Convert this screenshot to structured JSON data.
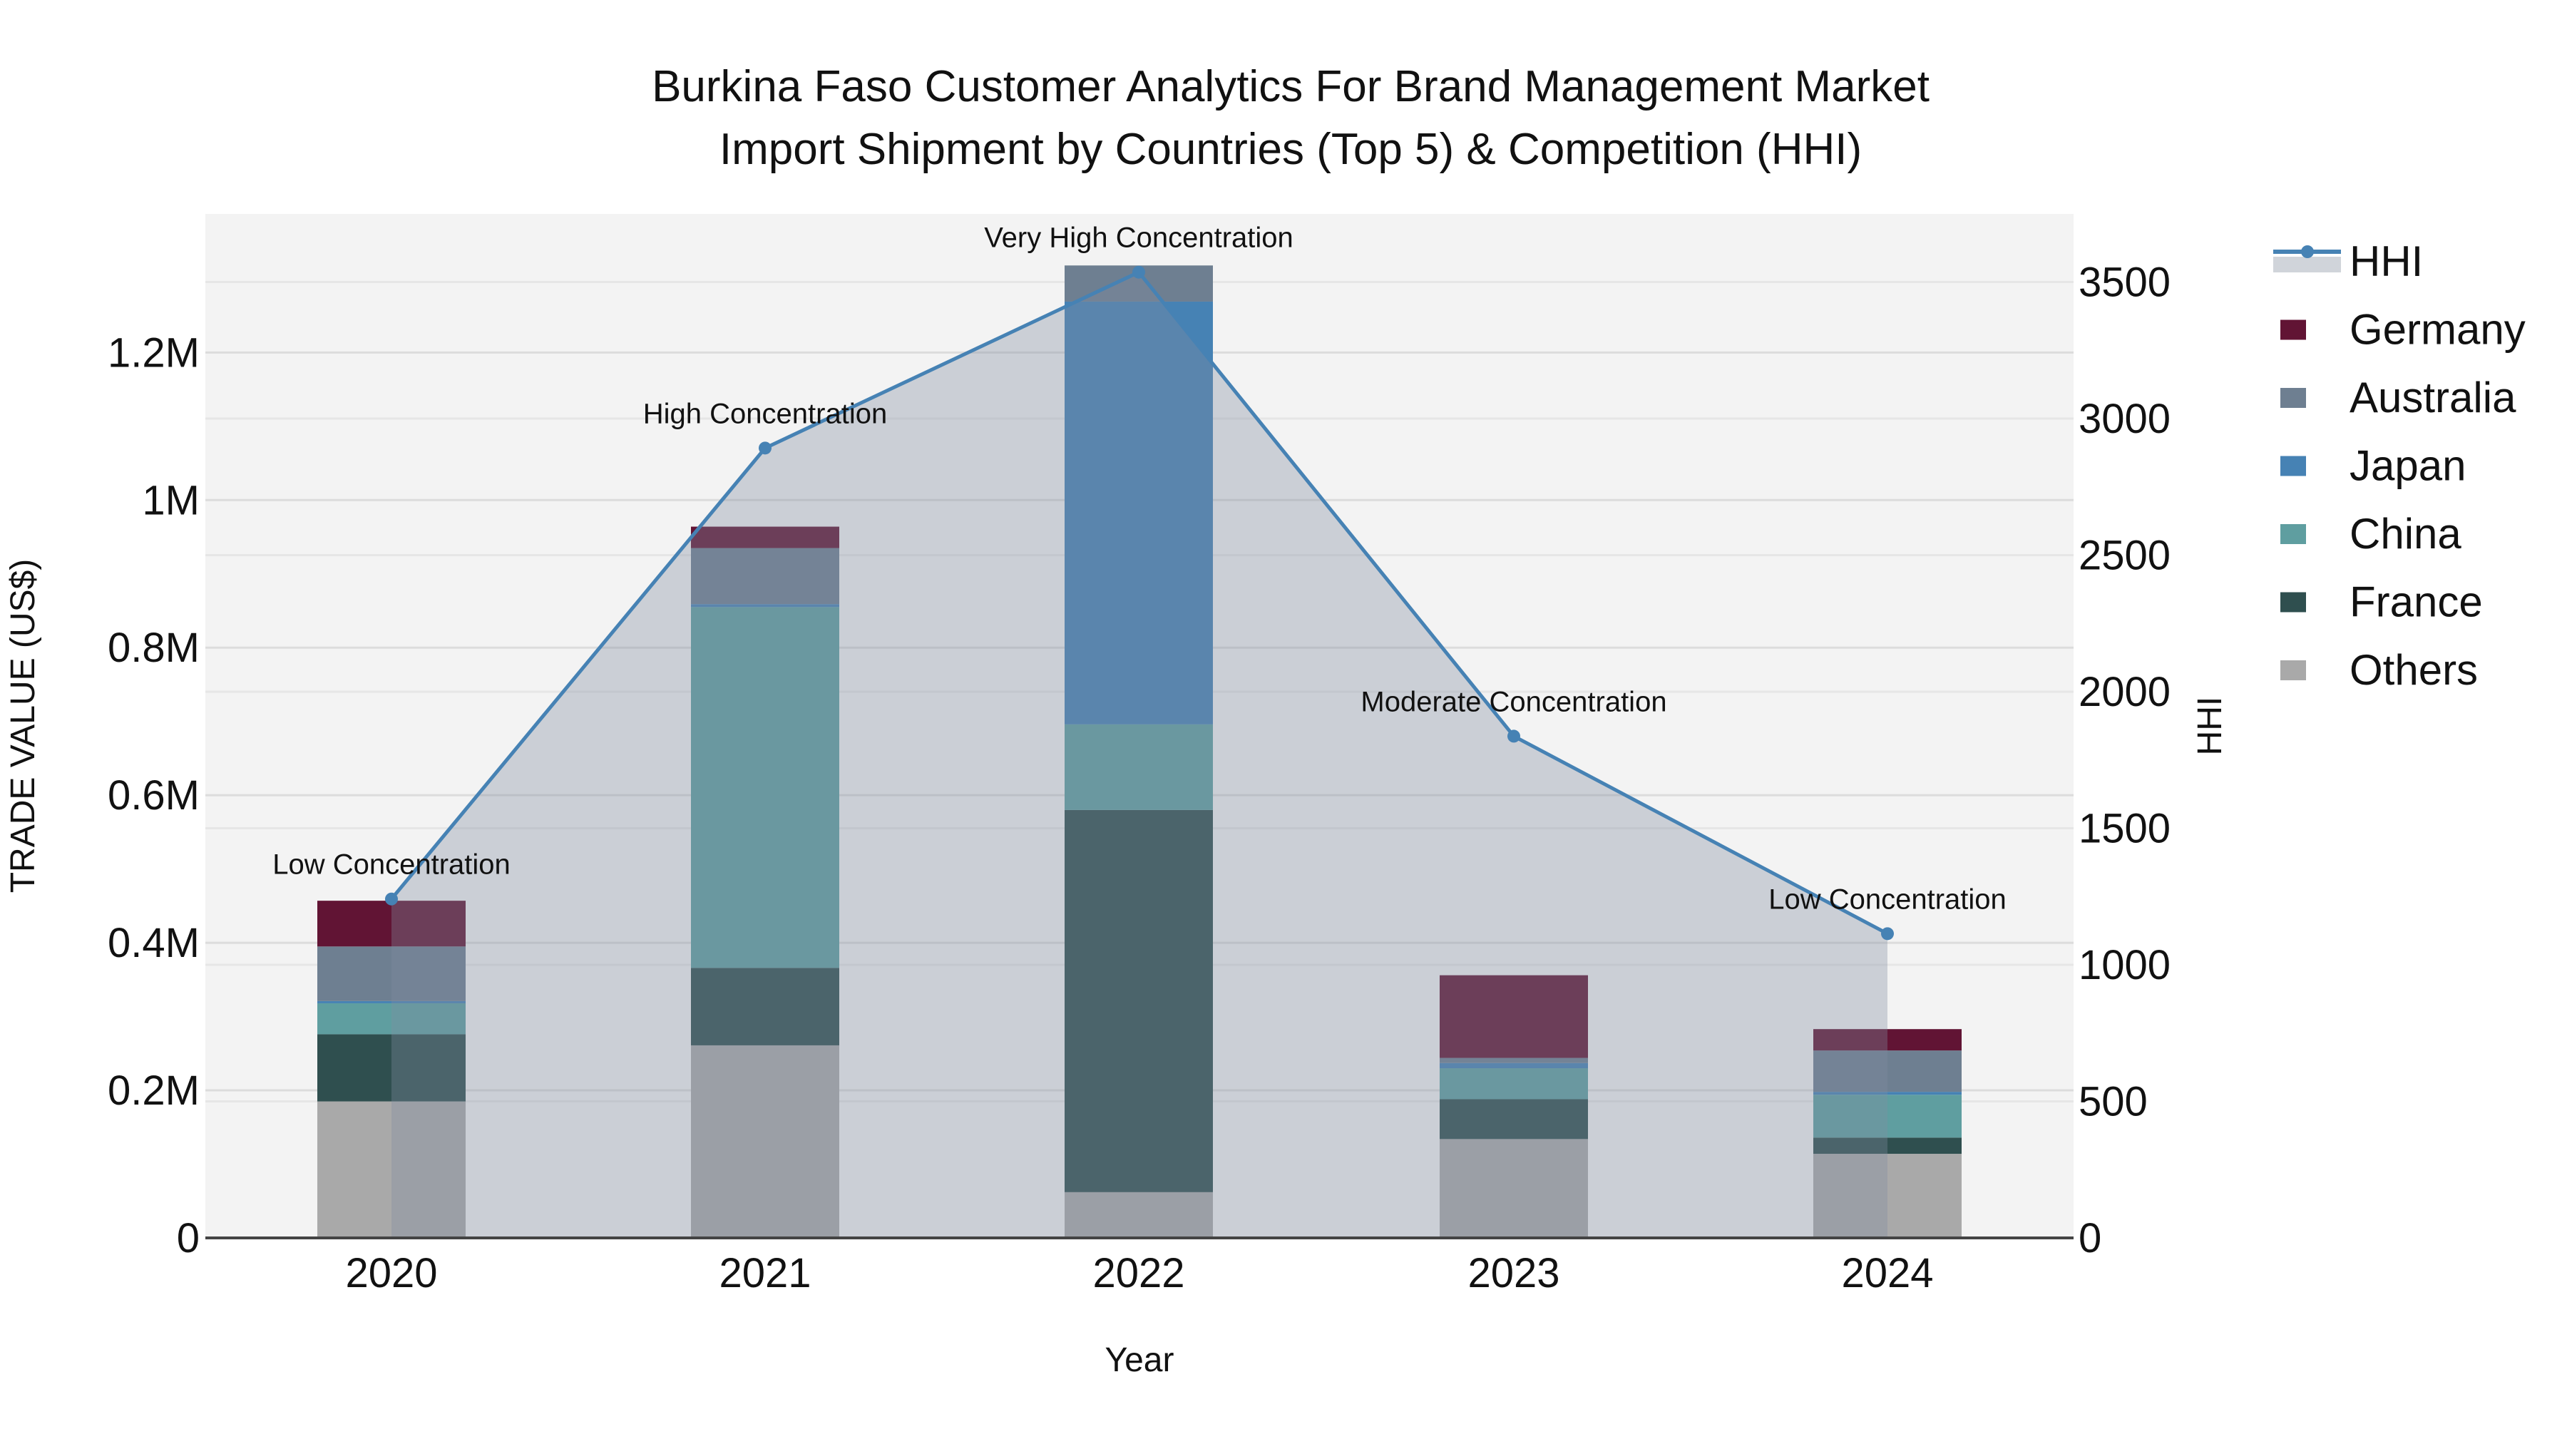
{
  "chart_data": {
    "type": "bar",
    "title_line1": "Burkina Faso Customer Analytics For Brand Management Market",
    "title_line2": "Import Shipment by Countries (Top 5) & Competition (HHI)",
    "xlabel": "Year",
    "ylabel": "TRADE VALUE (US$)",
    "y2label": "HHI",
    "categories": [
      "2020",
      "2021",
      "2022",
      "2023",
      "2024"
    ],
    "ylim": [
      0,
      1380000
    ],
    "y2lim": [
      0,
      3740
    ],
    "yticks": [
      0,
      200000,
      400000,
      600000,
      800000,
      1000000,
      1200000
    ],
    "ytick_labels": [
      "0",
      "0.2M",
      "0.4M",
      "0.6M",
      "0.8M",
      "1M",
      "1.2M"
    ],
    "y2ticks": [
      0,
      500,
      1000,
      1500,
      2000,
      2500,
      3000,
      3500
    ],
    "y2tick_labels": [
      "0",
      "500",
      "1000",
      "1500",
      "2000",
      "2500",
      "3000",
      "3500"
    ],
    "stack_order": [
      "Others",
      "France",
      "China",
      "Japan",
      "Australia",
      "Germany"
    ],
    "series": [
      {
        "name": "Germany",
        "color": "#611434",
        "values": [
          62000,
          29000,
          0,
          112000,
          29000
        ]
      },
      {
        "name": "Australia",
        "color": "#6e7f91",
        "values": [
          74000,
          76000,
          49000,
          7000,
          56000
        ]
      },
      {
        "name": "Japan",
        "color": "#4682b4",
        "values": [
          3000,
          4000,
          573000,
          7000,
          4000
        ]
      },
      {
        "name": "China",
        "color": "#5f9ea0",
        "values": [
          42000,
          489000,
          116000,
          42000,
          58000
        ]
      },
      {
        "name": "France",
        "color": "#2f4f4f",
        "values": [
          91000,
          105000,
          518000,
          54000,
          22000
        ]
      },
      {
        "name": "Others",
        "color": "#a9a9a9",
        "values": [
          185000,
          261000,
          62000,
          134000,
          114000
        ]
      }
    ],
    "hhi": {
      "name": "HHI",
      "color": "#4682b4",
      "values": [
        1241,
        2892,
        3536,
        1837,
        1114
      ],
      "annotations": [
        "Low Concentration",
        "High Concentration",
        "Very High Concentration",
        "Moderate Concentration",
        "Low Concentration"
      ]
    },
    "legend_position": "right",
    "legend_order": [
      "HHI",
      "Germany",
      "Australia",
      "Japan",
      "China",
      "France",
      "Others"
    ],
    "grid": true
  }
}
